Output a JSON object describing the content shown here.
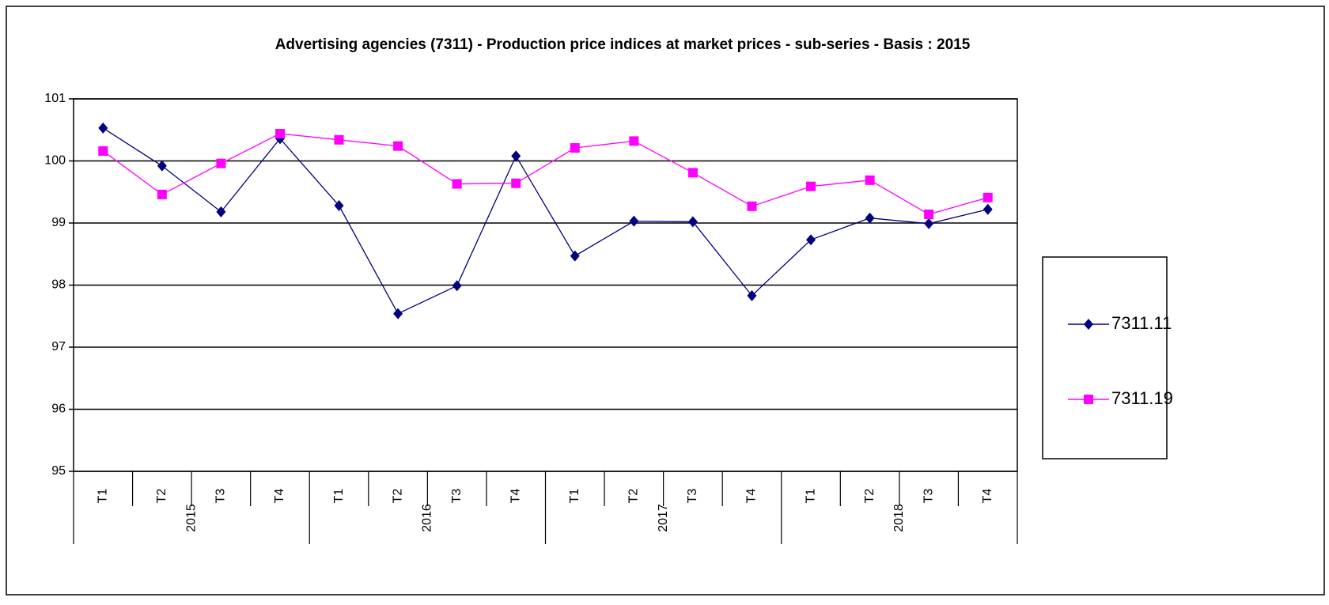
{
  "chart_data": {
    "type": "line",
    "title": "Advertising agencies (7311) - Production price indices at market prices - sub-series - Basis : 2015",
    "groups": [
      {
        "name": "2015",
        "categories": [
          "T1",
          "T2",
          "T3",
          "T4"
        ]
      },
      {
        "name": "2016",
        "categories": [
          "T1",
          "T2",
          "T3",
          "T4"
        ]
      },
      {
        "name": "2017",
        "categories": [
          "T1",
          "T2",
          "T3",
          "T4"
        ]
      },
      {
        "name": "2018",
        "categories": [
          "T1",
          "T2",
          "T3",
          "T4"
        ]
      }
    ],
    "series": [
      {
        "name": "7311.11",
        "color": "#000080",
        "marker": "diamond",
        "values": [
          100.53,
          99.92,
          99.18,
          100.36,
          99.28,
          97.54,
          97.99,
          100.08,
          98.47,
          99.03,
          99.02,
          97.83,
          98.73,
          99.08,
          98.99,
          99.22
        ]
      },
      {
        "name": "7311.19",
        "color": "#ff00ff",
        "marker": "square",
        "values": [
          100.16,
          99.46,
          99.96,
          100.44,
          100.34,
          100.24,
          99.63,
          99.64,
          100.21,
          100.32,
          99.81,
          99.27,
          99.59,
          99.69,
          99.14,
          99.41
        ]
      }
    ],
    "ylim": [
      95,
      101
    ],
    "yticks": [
      95,
      96,
      97,
      98,
      99,
      100,
      101
    ],
    "grid": true,
    "legend": "right"
  }
}
